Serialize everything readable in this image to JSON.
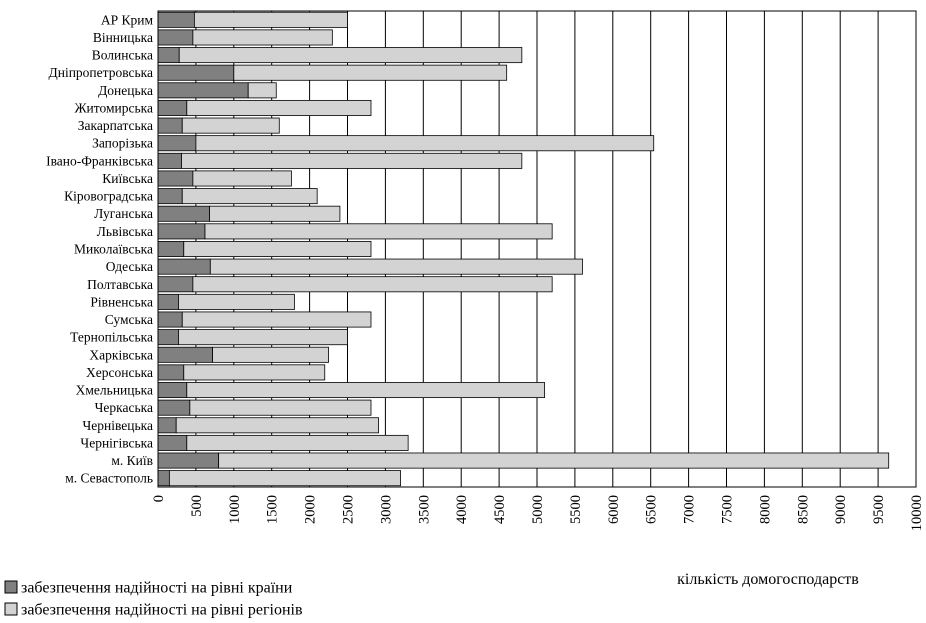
{
  "chart_data": {
    "type": "bar",
    "orientation": "horizontal",
    "stacked": true,
    "categories": [
      "АР Крим",
      "Вінницька",
      "Волинська",
      "Дніпропетровська",
      "Донецька",
      "Житомирська",
      "Закарпатська",
      "Запорізька",
      "Івано-Франківська",
      "Київська",
      "Кіровоградська",
      "Луганська",
      "Львівська",
      "Миколаївська",
      "Одеська",
      "Полтавська",
      "Рівненська",
      "Сумська",
      "Тернопільська",
      "Харківська",
      "Херсонська",
      "Хмельницька",
      "Черкаська",
      "Чернівецька",
      "Чернігівська",
      "м. Київ",
      "м. Севастополь"
    ],
    "series": [
      {
        "name": "забезпечення надійності на рівні країни",
        "color": "#808080",
        "values": [
          480,
          460,
          280,
          1000,
          1190,
          380,
          320,
          500,
          310,
          460,
          320,
          680,
          620,
          340,
          690,
          460,
          270,
          320,
          270,
          720,
          340,
          380,
          420,
          240,
          380,
          800,
          150
        ]
      },
      {
        "name": "забезпечення надійності на рівні регіонів",
        "color": "#d3d3d3",
        "values": [
          2020,
          1840,
          4520,
          3600,
          370,
          2430,
          1280,
          6040,
          4490,
          1300,
          1780,
          1720,
          4580,
          2470,
          4910,
          4740,
          1530,
          2490,
          2230,
          1530,
          1860,
          4720,
          2390,
          2670,
          2920,
          8840,
          3050
        ]
      }
    ],
    "xlabel": "кількість домогосподарств",
    "ylabel": "",
    "title": "",
    "xlim": [
      0,
      10000
    ],
    "xticks": [
      0,
      500,
      1000,
      1500,
      2000,
      2500,
      3000,
      3500,
      4000,
      4500,
      5000,
      5500,
      6000,
      6500,
      7000,
      7500,
      8000,
      8500,
      9000,
      9500,
      10000
    ],
    "grid": "vertical",
    "legend_position": "bottom-left"
  }
}
